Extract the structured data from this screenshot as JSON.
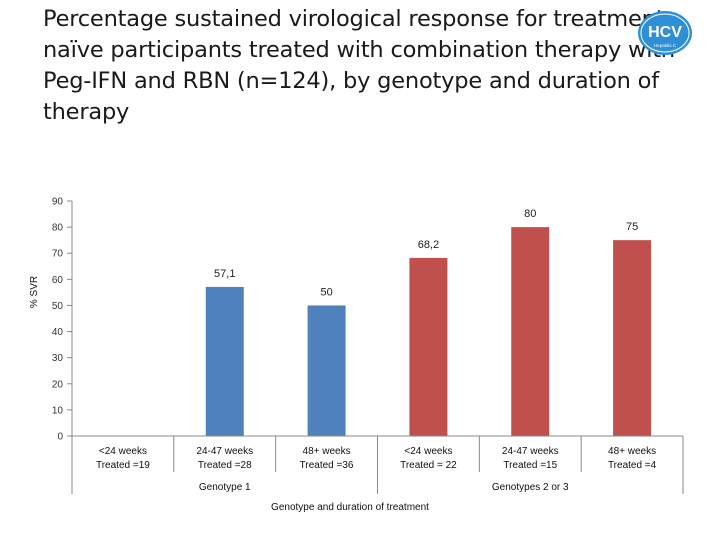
{
  "title": "Percentage sustained virological response for treatment-naïve participants treated with combination therapy with Peg-IFN and RBN (n=124), by genotype and duration of therapy",
  "logo": {
    "text": "HCV",
    "subtext": "Hepatitis C",
    "color": "#2f8fd6"
  },
  "chart_data": {
    "type": "bar",
    "ylabel": "% SVR",
    "xlabel": "Genotype and duration of treatment",
    "ylim": [
      0,
      90
    ],
    "yticks": [
      0,
      10,
      20,
      30,
      40,
      50,
      60,
      70,
      80,
      90
    ],
    "grid": false,
    "categories": [
      [
        "<24 weeks",
        "Treated =19"
      ],
      [
        "24-47 weeks",
        "Treated =28"
      ],
      [
        "48+ weeks",
        "Treated =36"
      ],
      [
        "<24 weeks",
        "Treated = 22"
      ],
      [
        "24-47 weeks",
        "Treated =15"
      ],
      [
        "48+ weeks",
        "Treated =4"
      ]
    ],
    "values": [
      null,
      57.1,
      50,
      68.2,
      80,
      75
    ],
    "data_labels": [
      "",
      "57,1",
      "50",
      "68,2",
      "80",
      "75"
    ],
    "colors": [
      "#4f81bd",
      "#4f81bd",
      "#4f81bd",
      "#c0504d",
      "#c0504d",
      "#c0504d"
    ],
    "groups": [
      {
        "label": "Genotype 1",
        "start": 0,
        "end": 2
      },
      {
        "label": "Genotypes 2 or 3",
        "start": 3,
        "end": 5
      }
    ]
  }
}
